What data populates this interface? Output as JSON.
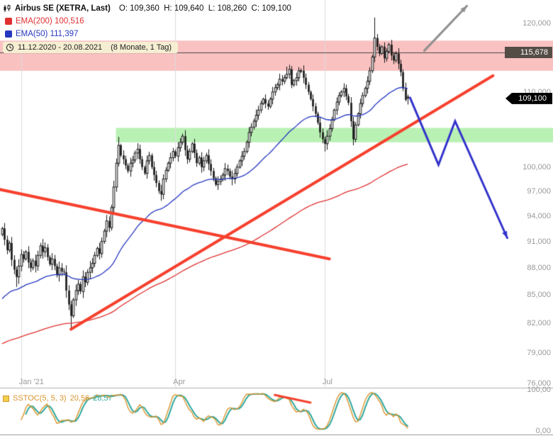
{
  "header": {
    "title": "Airbus SE (XETRA, Last)",
    "ohlc_text": "O: 109,360  H: 109,640  L: 108,260  C: 109,100",
    "ema200_label": "EMA(200)",
    "ema200_value": "100,516",
    "ema50_label": "EMA(50)",
    "ema50_value": "111,397",
    "date_range": "11.12.2020 - 20.08.2021",
    "period": "(8 Monate, 1 Tag)"
  },
  "colors": {
    "background": "#ffffff",
    "candle": "#141414",
    "ema200": "#e03030",
    "ema50": "#2638c0",
    "trendline": "#f6402d",
    "arrow_gray": "#8f8f8f",
    "arrow_blue": "#3333cc",
    "band_resistance": "rgba(244,118,118,0.45)",
    "band_support": "rgba(116,228,106,0.50)",
    "axis_text": "#9a9a9a",
    "badge_level_bg": "#534d45",
    "badge_last_bg": "#000000",
    "pill_bg": "#f5eed2",
    "stoch_k": "#d9952e",
    "stoch_d": "#2fa89c",
    "grid": "#dcdcdc",
    "level_line": "#4a4a4a",
    "separator": "#b0b0b0"
  },
  "chart_data": {
    "type": "candlestick",
    "instrument": "Airbus SE",
    "exchange": "XETRA",
    "date_range": "11.12.2020 - 20.08.2021",
    "interval": "1 Tag",
    "y_scale": "log",
    "y_range": [
      74.9,
      123.6
    ],
    "first_open": 91.8,
    "closes": [
      92.5,
      91.2,
      90.0,
      90.8,
      88.9,
      87.8,
      87.0,
      88.2,
      89.5,
      89.0,
      89.8,
      88.6,
      88.0,
      88.8,
      88.2,
      89.4,
      90.5,
      89.8,
      90.3,
      89.2,
      88.4,
      89.0,
      88.2,
      87.2,
      88.0,
      87.6,
      87.5,
      85.5,
      84.0,
      82.8,
      84.5,
      85.5,
      86.2,
      85.4,
      87.0,
      86.4,
      87.5,
      88.0,
      88.5,
      89.4,
      90.2,
      89.6,
      91.0,
      92.2,
      93.4,
      92.6,
      95.0,
      97.5,
      100.5,
      102.8,
      101.5,
      101.0,
      100.2,
      99.5,
      100.5,
      100.9,
      101.8,
      102.3,
      101.0,
      100.0,
      99.2,
      100.8,
      101.5,
      100.0,
      99.0,
      98.0,
      97.0,
      96.6,
      98.5,
      99.6,
      100.5,
      101.2,
      102.0,
      101.4,
      102.5,
      103.2,
      104.0,
      102.2,
      101.0,
      102.0,
      103.0,
      101.8,
      100.5,
      101.2,
      100.0,
      100.8,
      101.5,
      100.4,
      99.5,
      98.6,
      97.8,
      98.2,
      98.5,
      99.0,
      99.8,
      99.5,
      98.8,
      98.5,
      99.2,
      100.0,
      100.8,
      101.4,
      102.0,
      103.2,
      104.5,
      105.2,
      106.0,
      106.8,
      107.5,
      108.4,
      109.0,
      108.4,
      108.0,
      109.0,
      110.0,
      110.6,
      111.0,
      111.8,
      111.5,
      112.0,
      112.5,
      113.2,
      111.0,
      111.6,
      112.0,
      113.0,
      113.0,
      112.0,
      111.0,
      110.0,
      109.0,
      108.0,
      107.0,
      105.8,
      104.5,
      103.6,
      103.0,
      104.0,
      105.0,
      106.2,
      107.5,
      108.6,
      109.5,
      110.0,
      110.5,
      109.4,
      108.5,
      106.0,
      103.6,
      105.5,
      107.0,
      108.4,
      109.5,
      110.5,
      111.5,
      113.0,
      115.0,
      117.8,
      116.5,
      115.5,
      116.5,
      114.8,
      115.8,
      116.8,
      115.2,
      114.5,
      115.5,
      114.0,
      112.8,
      110.5,
      108.9,
      109.1
    ],
    "high_overrides": {
      "49": 103.9,
      "120": 113.6,
      "157": 120.9,
      "170": 111.3
    },
    "low_overrides": {
      "6": 85.9,
      "29": 81.5,
      "136": 102.0,
      "148": 102.8
    },
    "last_candle": {
      "o": 109.36,
      "h": 109.64,
      "l": 108.26,
      "c": 109.1
    },
    "emas": [
      {
        "name": "EMA(200)",
        "period": 200,
        "start_value": 79.8,
        "current": 100.516,
        "color_key": "ema200"
      },
      {
        "name": "EMA(50)",
        "period": 50,
        "start_value": 84.3,
        "current": 111.397,
        "color_key": "ema50"
      }
    ],
    "y_ticks": [
      {
        "price": 120,
        "label": "120,000"
      },
      {
        "price": 110,
        "label": "110,000"
      },
      {
        "price": 100,
        "label": "100,000"
      },
      {
        "price": 97,
        "label": "97,000"
      },
      {
        "price": 94,
        "label": "94,000"
      },
      {
        "price": 91,
        "label": "91,000"
      },
      {
        "price": 88,
        "label": "88,000"
      },
      {
        "price": 85,
        "label": "85,000"
      },
      {
        "price": 82,
        "label": "82,000"
      },
      {
        "price": 79,
        "label": "79,000"
      },
      {
        "price": 76,
        "label": "76,000"
      }
    ],
    "x_ticks": [
      {
        "index": 8,
        "label": "Jan '21"
      },
      {
        "index": 73,
        "label": "Apr"
      },
      {
        "index": 136,
        "label": "Jul"
      }
    ],
    "level_badge": {
      "price": 115.678,
      "label": "115,678"
    },
    "last_badge": {
      "price": 109.1,
      "label": "109,100"
    },
    "level_line_price": 115.678,
    "bands": [
      {
        "name": "resistance-zone",
        "price_top": 117.4,
        "price_bottom": 113.0,
        "from_index": null,
        "color_key": "band_resistance"
      },
      {
        "name": "support-zone",
        "price_top": 105.1,
        "price_bottom": 103.2,
        "from_index": 48,
        "color_key": "band_support"
      }
    ],
    "trendlines": [
      {
        "name": "ascending-support",
        "points": [
          [
            29,
            81.4
          ],
          [
            207,
            112.3
          ]
        ],
        "color_key": "trendline",
        "width": 4
      },
      {
        "name": "descending-resistance",
        "points": [
          [
            -1,
            97.2
          ],
          [
            138,
            89.0
          ]
        ],
        "color_key": "trendline",
        "width": 4
      }
    ],
    "arrows": [
      {
        "name": "projection-up",
        "points": [
          [
            178,
            115.9
          ],
          [
            196,
            122.7
          ]
        ],
        "color_key": "arrow_gray",
        "width": 3
      },
      {
        "name": "projection-down",
        "points": [
          [
            172,
            109.2
          ],
          [
            184,
            100.3
          ],
          [
            191,
            106.0
          ],
          [
            213,
            91.4
          ]
        ],
        "color_key": "arrow_blue",
        "width": 3
      }
    ],
    "stoch": {
      "label": "SSTOC(5, 5, 3)",
      "params": [
        5,
        5,
        3
      ],
      "k_value": "20,56",
      "d_value": "28,57",
      "axis_max": "100,00",
      "axis_min": "0,00",
      "red_segment": {
        "points": [
          [
            115,
            88
          ],
          [
            130,
            70
          ]
        ],
        "color_key": "trendline",
        "width": 3
      }
    }
  }
}
